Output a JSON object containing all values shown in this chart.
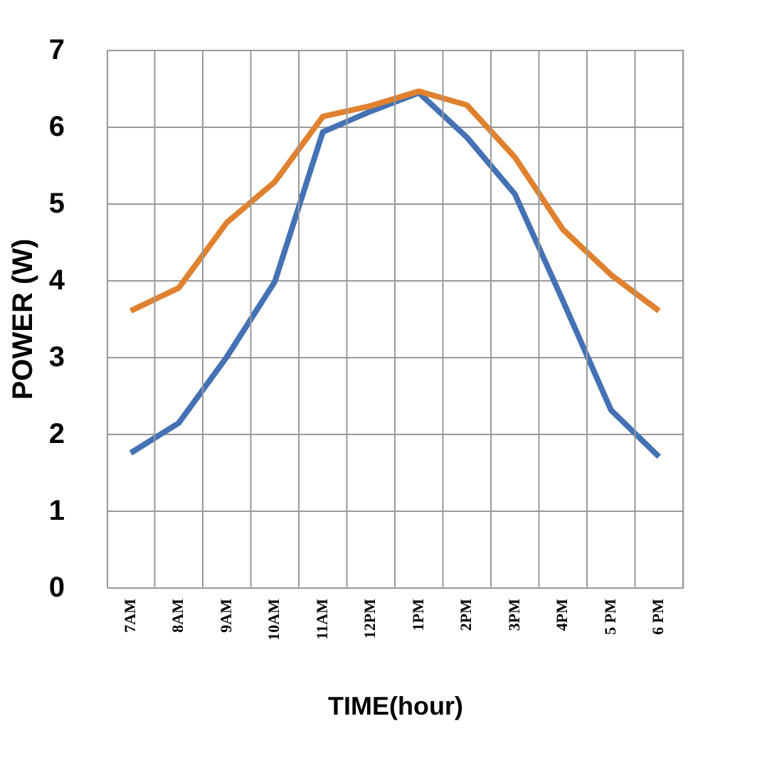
{
  "chart_data": {
    "type": "line",
    "xlabel": "TIME(hour)",
    "ylabel": "POWER (W)",
    "categories": [
      "7AM",
      "8AM",
      "9AM",
      "10AM",
      "11AM",
      "12PM",
      "1PM",
      "2PM",
      "3PM",
      "4PM",
      "5 PM",
      "6 PM"
    ],
    "series": [
      {
        "color": "#4472b4",
        "values": [
          1.75,
          2.14,
          3.0,
          3.98,
          5.93,
          6.2,
          6.44,
          5.86,
          5.12,
          3.73,
          2.31,
          1.7
        ]
      },
      {
        "color": "#e0812f",
        "values": [
          3.6,
          3.9,
          4.75,
          5.28,
          6.13,
          6.27,
          6.46,
          6.28,
          5.6,
          4.66,
          4.07,
          3.6
        ]
      }
    ],
    "ylim": [
      0,
      7
    ],
    "yticks": [
      0,
      1,
      2,
      3,
      4,
      5,
      6,
      7
    ],
    "grid": true,
    "marker": "none",
    "line_style": "solid"
  }
}
